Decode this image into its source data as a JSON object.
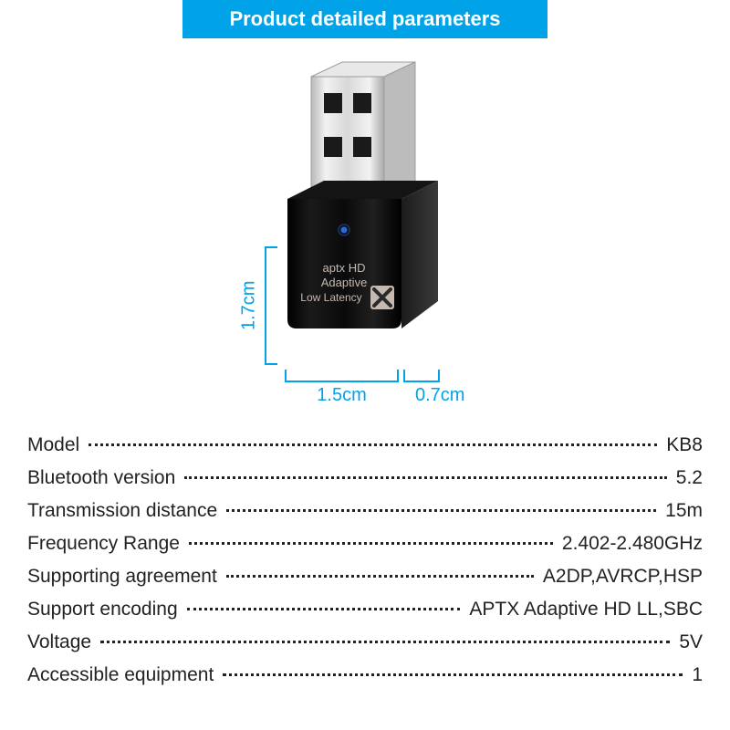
{
  "header": {
    "title": "Product detailed parameters",
    "bg": "#00a3e8",
    "fg": "#ffffff"
  },
  "colors": {
    "accent": "#00a3e8",
    "text": "#222222",
    "background": "#ffffff"
  },
  "product": {
    "labels": [
      "aptx HD",
      "Adaptive",
      "Low Latency"
    ],
    "led_color": "#2a6bdc",
    "body_color": "#0a0a0a",
    "metal_light": "#f0f0f0",
    "metal_mid": "#cfcfcf",
    "metal_dark": "#9c9c9c",
    "label_color": "#c6b9af",
    "badge_bg": "#c6b9af",
    "badge_fg": "#2a2a2a"
  },
  "dimensions": {
    "height": "1.7cm",
    "width": "1.5cm",
    "depth": "0.7cm",
    "color": "#00a3e8",
    "fontsize": 20
  },
  "specs": {
    "fontsize": 21,
    "text_color": "#222222",
    "dot_color": "#222222",
    "rows": [
      {
        "label": "Model",
        "value": "KB8"
      },
      {
        "label": "Bluetooth version",
        "value": "5.2"
      },
      {
        "label": "Transmission distance",
        "value": "15m"
      },
      {
        "label": "Frequency Range",
        "value": "2.402-2.480GHz"
      },
      {
        "label": "Supporting agreement",
        "value": "A2DP,AVRCP,HSP"
      },
      {
        "label": "Support encoding",
        "value": "APTX Adaptive HD LL,SBC"
      },
      {
        "label": "Voltage",
        "value": "5V"
      },
      {
        "label": "Accessible equipment",
        "value": "1"
      }
    ]
  }
}
